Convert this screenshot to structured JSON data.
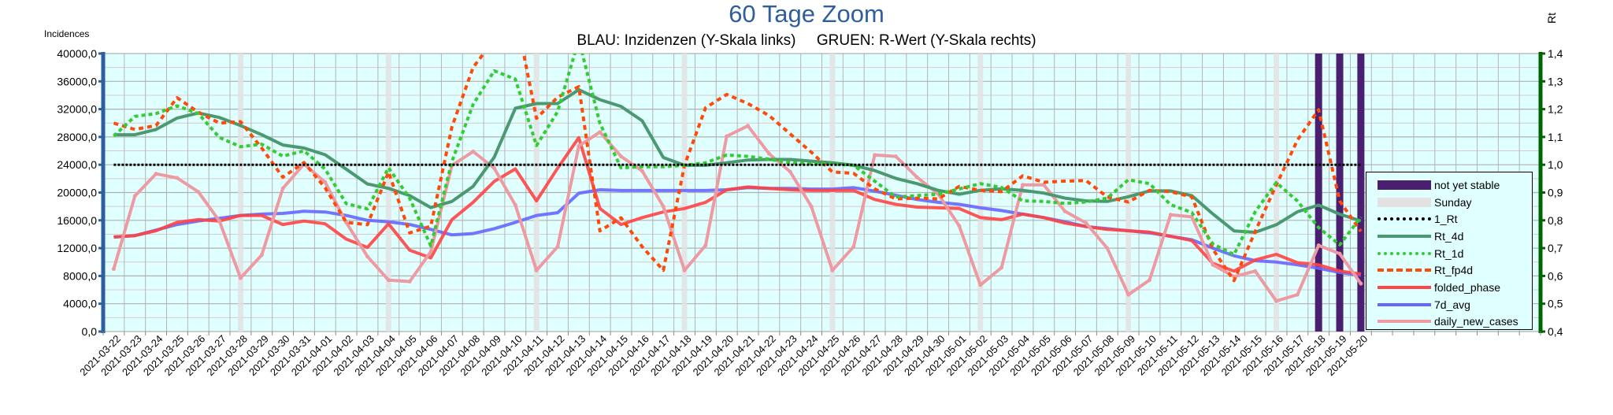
{
  "title": "60 Tage Zoom",
  "subtitle": "BLAU: Inzidenzen (Y-Skala links)     GRUEN: R-Wert (Y-Skala rechts)",
  "chart_data": {
    "type": "line",
    "title": "60 Tage Zoom",
    "subtitle": "BLAU: Inzidenzen (Y-Skala links)     GRUEN: R-Wert (Y-Skala rechts)",
    "ylabel_left": "Incidences",
    "ylabel_right": "Rt",
    "ylim_left": [
      0,
      40000
    ],
    "ylim_right": [
      0.4,
      1.4
    ],
    "yticks_left": [
      "0,0",
      "4000,0",
      "8000,0",
      "12000,0",
      "16000,0",
      "20000,0",
      "24000,0",
      "28000,0",
      "32000,0",
      "36000,0",
      "40000,0"
    ],
    "yticks_right": [
      "0,4",
      "0,5",
      "0,6",
      "0,7",
      "0,8",
      "0,9",
      "1,0",
      "1,1",
      "1,2",
      "1,3",
      "1,4"
    ],
    "grid": true,
    "legend_position": "right",
    "plot_background": "#e0ffff",
    "categories": [
      "2021-03-22",
      "2021-03-23",
      "2021-03-24",
      "2021-03-25",
      "2021-03-26",
      "2021-03-27",
      "2021-03-28",
      "2021-03-29",
      "2021-03-30",
      "2021-03-31",
      "2021-04-01",
      "2021-04-02",
      "2021-04-03",
      "2021-04-04",
      "2021-04-05",
      "2021-04-06",
      "2021-04-07",
      "2021-04-08",
      "2021-04-09",
      "2021-04-10",
      "2021-04-11",
      "2021-04-12",
      "2021-04-13",
      "2021-04-14",
      "2021-04-15",
      "2021-04-16",
      "2021-04-17",
      "2021-04-18",
      "2021-04-19",
      "2021-04-20",
      "2021-04-21",
      "2021-04-22",
      "2021-04-23",
      "2021-04-24",
      "2021-04-25",
      "2021-04-26",
      "2021-04-27",
      "2021-04-28",
      "2021-04-29",
      "2021-04-30",
      "2021-05-01",
      "2021-05-02",
      "2021-05-03",
      "2021-05-04",
      "2021-05-05",
      "2021-05-06",
      "2021-05-07",
      "2021-05-08",
      "2021-05-09",
      "2021-05-10",
      "2021-05-11",
      "2021-05-12",
      "2021-05-13",
      "2021-05-14",
      "2021-05-15",
      "2021-05-16",
      "2021-05-17",
      "2021-05-18",
      "2021-05-19",
      "2021-05-20"
    ],
    "bands": [
      {
        "name": "not yet stable",
        "color": "#4b1f6f",
        "categories": [
          "2021-05-18",
          "2021-05-19",
          "2021-05-20"
        ]
      },
      {
        "name": "Sunday",
        "color": "#e2e2e2",
        "categories": [
          "2021-03-28",
          "2021-04-04",
          "2021-04-11",
          "2021-04-18",
          "2021-04-25",
          "2021-05-02",
          "2021-05-09",
          "2021-05-16"
        ]
      }
    ],
    "series": [
      {
        "name": "1_Rt",
        "axis": "right",
        "color": "#000000",
        "style": "dotted",
        "values": [
          1,
          1,
          1,
          1,
          1,
          1,
          1,
          1,
          1,
          1,
          1,
          1,
          1,
          1,
          1,
          1,
          1,
          1,
          1,
          1,
          1,
          1,
          1,
          1,
          1,
          1,
          1,
          1,
          1,
          1,
          1,
          1,
          1,
          1,
          1,
          1,
          1,
          1,
          1,
          1,
          1,
          1,
          1,
          1,
          1,
          1,
          1,
          1,
          1,
          1,
          1,
          1,
          1,
          1,
          1,
          1,
          1,
          1,
          1,
          1
        ]
      },
      {
        "name": "Rt_4d",
        "axis": "right",
        "color": "#4a9970",
        "style": "solid",
        "values": [
          1.108,
          1.108,
          1.127,
          1.168,
          1.186,
          1.17,
          1.141,
          1.108,
          1.071,
          1.06,
          1.036,
          0.984,
          0.931,
          0.915,
          0.889,
          0.846,
          0.868,
          0.922,
          1.027,
          1.203,
          1.22,
          1.22,
          1.27,
          1.234,
          1.21,
          1.158,
          1.026,
          0.998,
          0.998,
          1.007,
          1.017,
          1.019,
          1.019,
          1.013,
          1.007,
          0.998,
          0.979,
          0.951,
          0.932,
          0.908,
          0.894,
          0.908,
          0.913,
          0.908,
          0.898,
          0.88,
          0.87,
          0.868,
          0.885,
          0.906,
          0.906,
          0.889,
          0.823,
          0.762,
          0.757,
          0.784,
          0.831,
          0.855,
          0.822,
          0.798
        ]
      },
      {
        "name": "Rt_1d",
        "axis": "right",
        "color": "#33cc33",
        "style": "dotted",
        "values": [
          1.103,
          1.174,
          1.184,
          1.212,
          1.184,
          1.098,
          1.065,
          1.074,
          1.031,
          1.05,
          0.984,
          0.86,
          0.841,
          0.989,
          0.879,
          0.708,
          1.012,
          1.217,
          1.338,
          1.308,
          1.069,
          1.191,
          1.45,
          1.149,
          0.989,
          0.993,
          0.993,
          0.998,
          1.007,
          1.035,
          1.03,
          1.02,
          1.007,
          1.003,
          1.003,
          0.998,
          0.941,
          0.884,
          0.889,
          0.894,
          0.913,
          0.932,
          0.918,
          0.87,
          0.868,
          0.861,
          0.866,
          0.88,
          0.946,
          0.932,
          0.856,
          0.828,
          0.715,
          0.677,
          0.831,
          0.936,
          0.869,
          0.774,
          0.712,
          0.812
        ]
      },
      {
        "name": "Rt_fp4d",
        "axis": "right",
        "color": "#ff4a0a",
        "style": "dashed",
        "values": [
          1.15,
          1.127,
          1.141,
          1.241,
          1.189,
          1.15,
          1.155,
          1.06,
          0.955,
          1.008,
          0.917,
          0.793,
          0.784,
          0.974,
          0.755,
          0.779,
          1.136,
          1.35,
          1.45,
          1.55,
          1.167,
          1.243,
          1.281,
          0.762,
          0.809,
          0.705,
          0.62,
          0.998,
          1.205,
          1.253,
          1.22,
          1.177,
          1.111,
          1.045,
          0.974,
          0.969,
          0.913,
          0.877,
          0.88,
          0.877,
          0.922,
          0.908,
          0.903,
          0.96,
          0.937,
          0.941,
          0.943,
          0.884,
          0.866,
          0.908,
          0.903,
          0.884,
          0.696,
          0.583,
          0.76,
          0.927,
          1.089,
          1.198,
          0.87,
          0.76
        ]
      },
      {
        "name": "folded_phase",
        "axis": "left",
        "color": "#ff4444",
        "style": "solid",
        "values": [
          13600,
          13800,
          14500,
          15700,
          16100,
          15900,
          16700,
          16700,
          15400,
          15900,
          15500,
          13300,
          12100,
          15500,
          11700,
          10600,
          16100,
          18600,
          21600,
          23400,
          18800,
          23500,
          27900,
          17700,
          15400,
          16400,
          17200,
          17700,
          18600,
          20400,
          20800,
          20600,
          20400,
          20300,
          20300,
          20300,
          19000,
          18300,
          17900,
          17800,
          17700,
          16400,
          16100,
          16900,
          16400,
          15600,
          15100,
          14700,
          14500,
          14300,
          13700,
          13100,
          9800,
          8700,
          10300,
          11100,
          9900,
          9600,
          8700,
          8300
        ]
      },
      {
        "name": "7d_avg",
        "axis": "left",
        "color": "#6666ff",
        "style": "solid",
        "values": [
          13600,
          13800,
          14600,
          15400,
          15900,
          16300,
          16700,
          16900,
          17000,
          17300,
          17200,
          16700,
          16000,
          15800,
          15400,
          14700,
          13900,
          14100,
          14800,
          15700,
          16700,
          17100,
          19900,
          20400,
          20300,
          20300,
          20300,
          20300,
          20300,
          20400,
          20700,
          20600,
          20600,
          20500,
          20500,
          20700,
          20200,
          19600,
          19000,
          18600,
          18300,
          17800,
          17400,
          16900,
          16400,
          15800,
          15100,
          14800,
          14500,
          14200,
          13700,
          13200,
          12000,
          10900,
          10200,
          10000,
          9600,
          9100,
          8500,
          8100
        ]
      },
      {
        "name": "daily_new_cases",
        "axis": "left",
        "color": "#ee9aa2",
        "style": "solid",
        "values": [
          9000,
          19500,
          22700,
          22100,
          20100,
          15900,
          7700,
          11000,
          20600,
          24100,
          21500,
          15700,
          10800,
          7400,
          7200,
          11500,
          23900,
          25900,
          23500,
          18200,
          8800,
          12200,
          26700,
          28700,
          25200,
          23100,
          18000,
          8800,
          12400,
          28100,
          29600,
          25600,
          23000,
          18000,
          8800,
          12200,
          25400,
          25200,
          22200,
          19800,
          15200,
          6700,
          9200,
          21100,
          21100,
          17300,
          15600,
          12000,
          5300,
          7400,
          16800,
          16500,
          9600,
          7900,
          8700,
          4400,
          5300,
          12400,
          11200,
          6900
        ]
      }
    ]
  },
  "legend": [
    {
      "label": "not yet stable",
      "color": "#4b1f6f",
      "style": "bar"
    },
    {
      "label": "Sunday",
      "color": "#e2e2e2",
      "style": "bar"
    },
    {
      "label": "1_Rt",
      "color": "#000000",
      "style": "dotted"
    },
    {
      "label": "Rt_4d",
      "color": "#4a9970",
      "style": "solid"
    },
    {
      "label": "Rt_1d",
      "color": "#33cc33",
      "style": "dotted"
    },
    {
      "label": "Rt_fp4d",
      "color": "#ff4a0a",
      "style": "dashed"
    },
    {
      "label": "folded_phase",
      "color": "#ff4444",
      "style": "solid"
    },
    {
      "label": "7d_avg",
      "color": "#6666ff",
      "style": "solid"
    },
    {
      "label": "daily_new_cases",
      "color": "#ee9aa2",
      "style": "marker"
    }
  ],
  "axis_colors": {
    "left": "#2a5fa0",
    "right": "#006400"
  }
}
